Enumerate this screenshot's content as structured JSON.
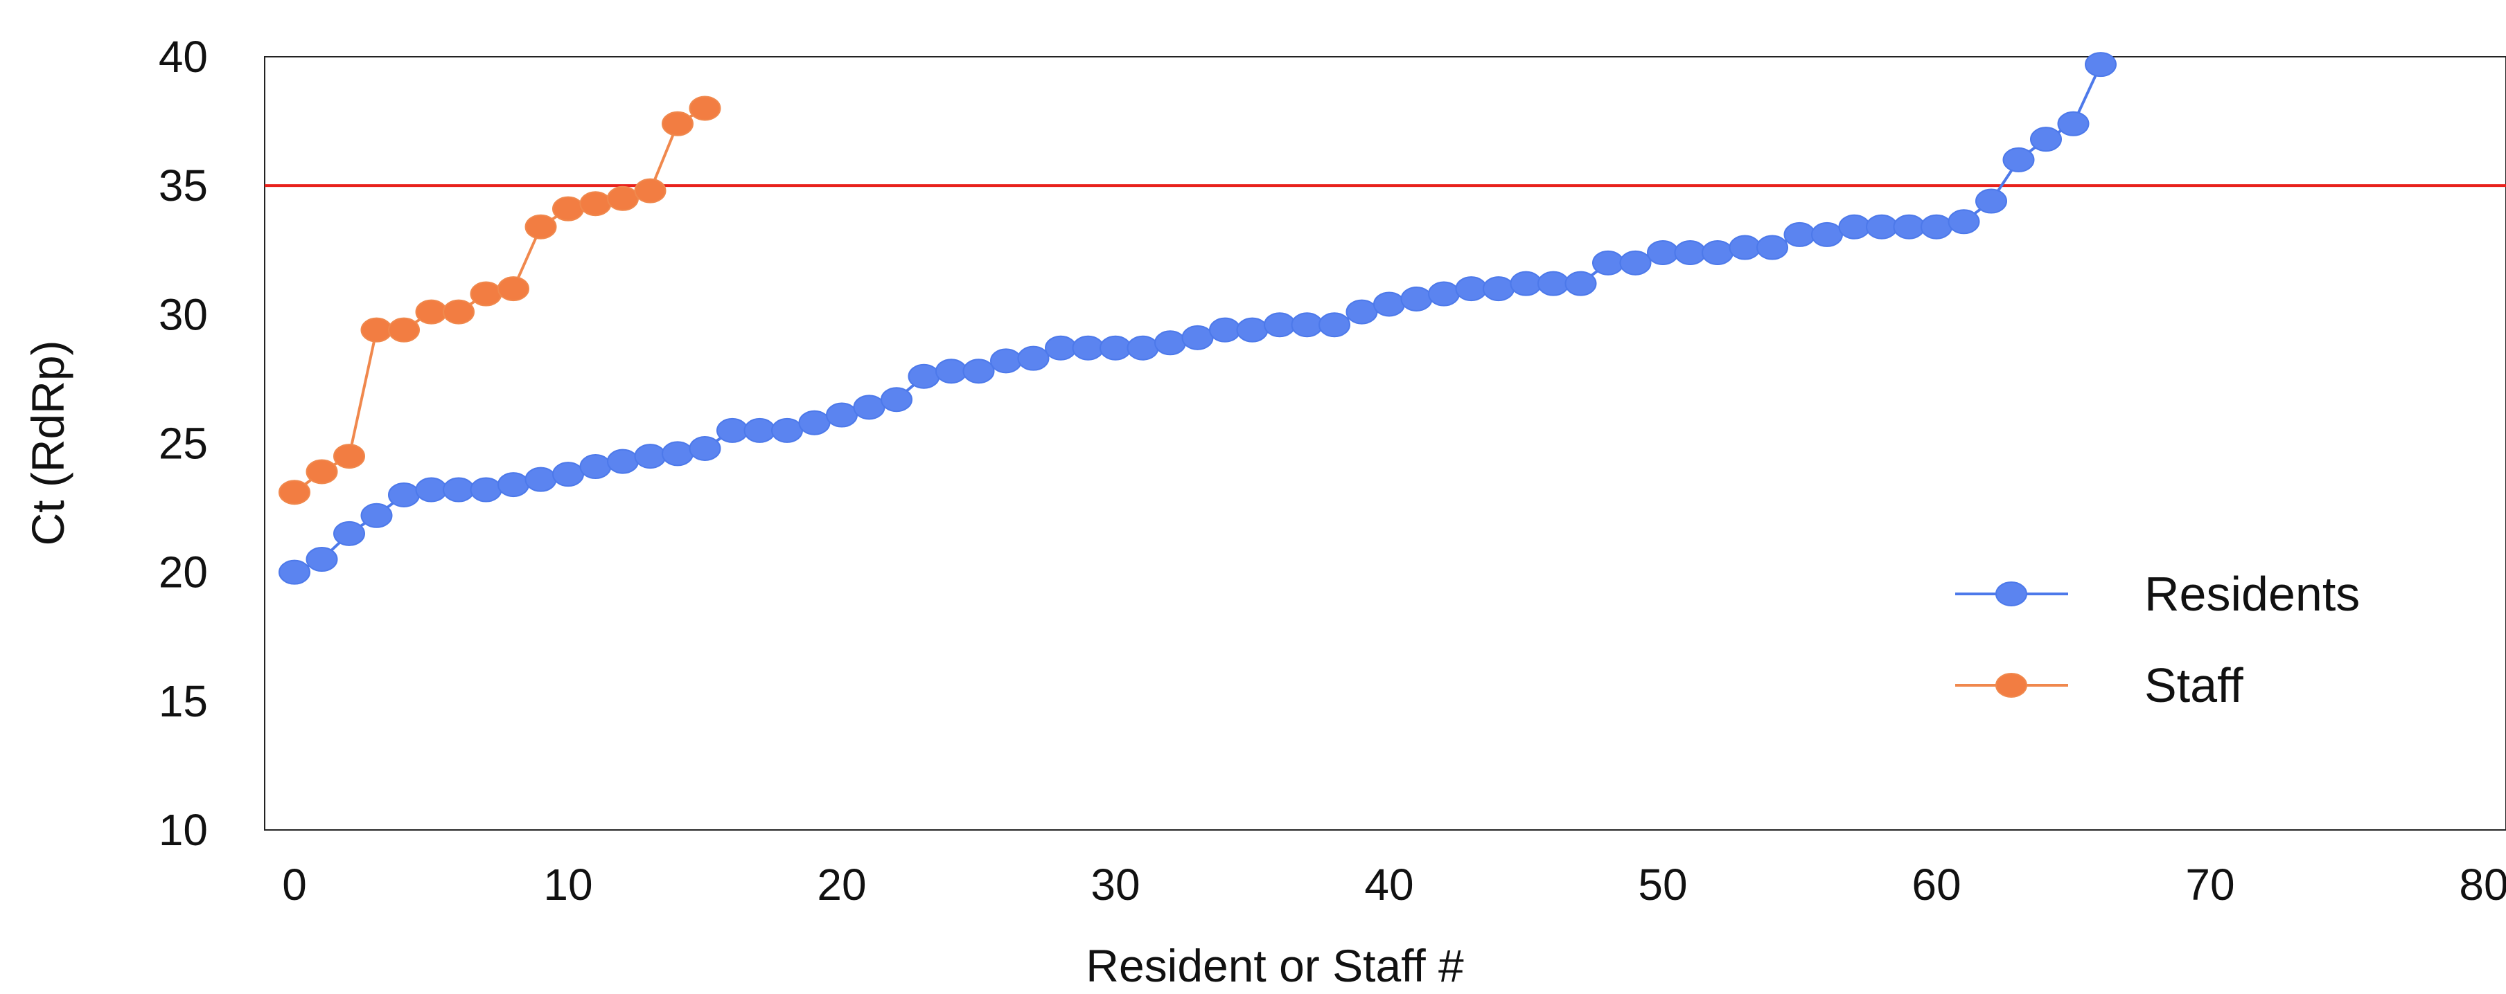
{
  "chart_data": {
    "type": "scatter",
    "title": "",
    "xlabel": "Resident or Staff #",
    "ylabel": "Ct (RdRp)",
    "xlim": [
      -1,
      80
    ],
    "ylim": [
      10,
      40
    ],
    "x_ticks": [
      0,
      10,
      20,
      30,
      40,
      50,
      60,
      70,
      80
    ],
    "y_ticks": [
      10,
      15,
      20,
      25,
      30,
      35,
      40
    ],
    "grid": false,
    "legend_position": "bottom-right",
    "threshold_line": {
      "y": 35,
      "color": "#e8211c"
    },
    "series": [
      {
        "name": "Residents",
        "color": "#4d79ea",
        "marker_color": "#5b84f0",
        "y": [
          20.0,
          20.5,
          21.5,
          22.2,
          23.0,
          23.2,
          23.2,
          23.2,
          23.4,
          23.6,
          23.8,
          24.1,
          24.3,
          24.5,
          24.6,
          24.8,
          25.5,
          25.5,
          25.5,
          25.8,
          26.1,
          26.4,
          26.7,
          27.6,
          27.8,
          27.8,
          28.2,
          28.3,
          28.7,
          28.7,
          28.7,
          28.7,
          28.9,
          29.1,
          29.4,
          29.4,
          29.6,
          29.6,
          29.6,
          30.1,
          30.4,
          30.6,
          30.8,
          31.0,
          31.0,
          31.2,
          31.2,
          31.2,
          32.0,
          32.0,
          32.4,
          32.4,
          32.4,
          32.6,
          32.6,
          33.1,
          33.1,
          33.4,
          33.4,
          33.4,
          33.4,
          33.6,
          34.4,
          36.0,
          36.8,
          37.4,
          39.7
        ]
      },
      {
        "name": "Staff",
        "color": "#f0884d",
        "marker_color": "#f27d42",
        "y": [
          23.1,
          23.9,
          24.5,
          29.4,
          29.4,
          30.1,
          30.1,
          30.8,
          31.0,
          33.4,
          34.1,
          34.3,
          34.5,
          34.8,
          37.4,
          38.0
        ]
      }
    ]
  }
}
